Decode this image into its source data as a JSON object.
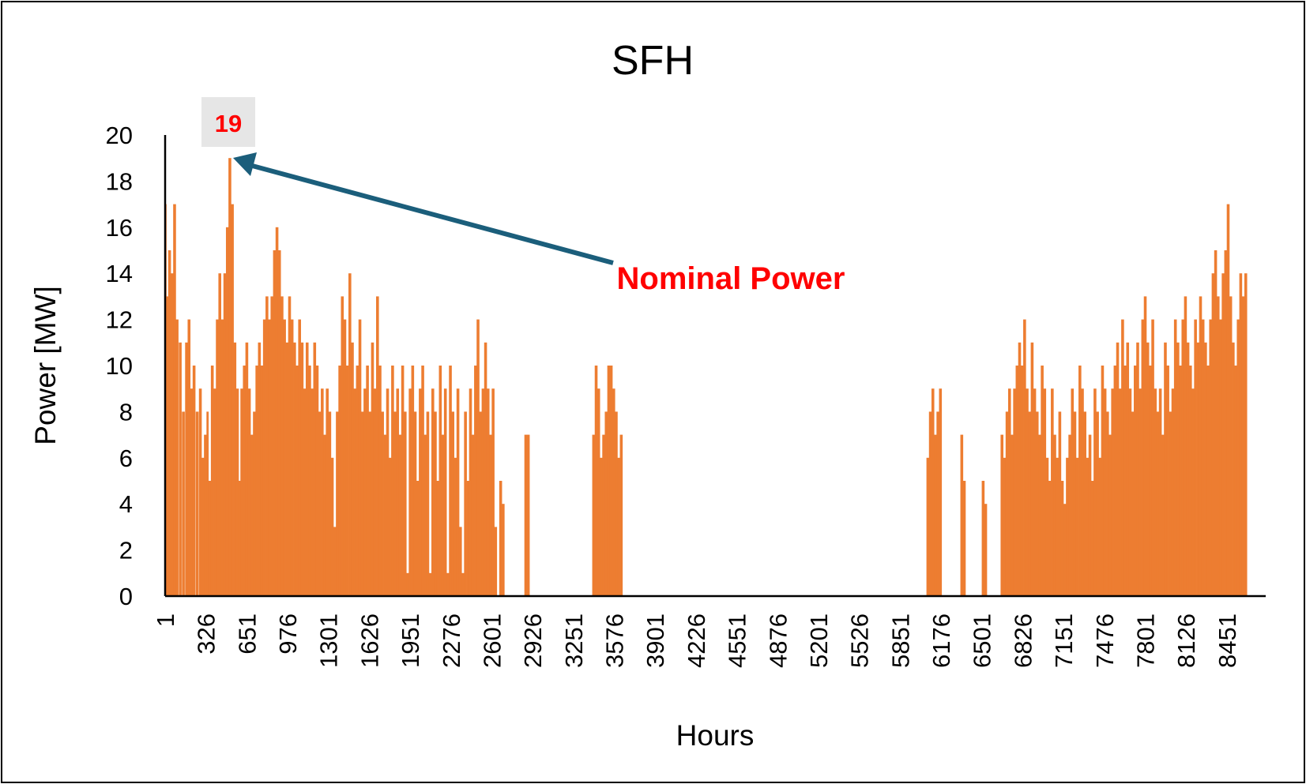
{
  "chart_data": {
    "type": "bar",
    "title": "SFH",
    "xlabel": "Hours",
    "ylabel": "Power [MW]",
    "ylim": [
      0,
      20
    ],
    "y_ticks": [
      "0",
      "2",
      "4",
      "6",
      "8",
      "10",
      "12",
      "14",
      "16",
      "18",
      "20"
    ],
    "x_ticks": [
      "1",
      "326",
      "651",
      "976",
      "1301",
      "1626",
      "1951",
      "2276",
      "2601",
      "2926",
      "3251",
      "3576",
      "3901",
      "4226",
      "4551",
      "4876",
      "5201",
      "5526",
      "5851",
      "6176",
      "6501",
      "6826",
      "7151",
      "7476",
      "7801",
      "8126",
      "8451"
    ],
    "x_range": [
      1,
      8760
    ],
    "bar_color": "#ED7D31",
    "grid": false,
    "series": [
      {
        "values": [
          [
            1,
            17
          ],
          [
            10,
            13
          ],
          [
            25,
            15
          ],
          [
            45,
            14
          ],
          [
            65,
            17
          ],
          [
            85,
            12
          ],
          [
            110,
            11
          ],
          [
            135,
            8
          ],
          [
            160,
            11
          ],
          [
            180,
            12
          ],
          [
            200,
            9
          ],
          [
            220,
            10
          ],
          [
            245,
            8
          ],
          [
            270,
            9
          ],
          [
            290,
            6
          ],
          [
            310,
            7
          ],
          [
            330,
            8
          ],
          [
            345,
            5
          ],
          [
            365,
            10
          ],
          [
            385,
            9
          ],
          [
            405,
            12
          ],
          [
            425,
            14
          ],
          [
            445,
            12
          ],
          [
            465,
            14
          ],
          [
            485,
            16
          ],
          [
            505,
            19
          ],
          [
            525,
            17
          ],
          [
            545,
            11
          ],
          [
            565,
            9
          ],
          [
            585,
            5
          ],
          [
            600,
            9
          ],
          [
            620,
            10
          ],
          [
            640,
            11
          ],
          [
            660,
            9
          ],
          [
            680,
            7
          ],
          [
            700,
            8
          ],
          [
            720,
            10
          ],
          [
            740,
            11
          ],
          [
            760,
            10
          ],
          [
            780,
            12
          ],
          [
            800,
            13
          ],
          [
            820,
            12
          ],
          [
            840,
            13
          ],
          [
            860,
            15
          ],
          [
            880,
            16
          ],
          [
            900,
            15
          ],
          [
            920,
            13
          ],
          [
            940,
            12
          ],
          [
            960,
            11
          ],
          [
            980,
            13
          ],
          [
            1000,
            12
          ],
          [
            1020,
            11
          ],
          [
            1040,
            10
          ],
          [
            1060,
            12
          ],
          [
            1080,
            11
          ],
          [
            1100,
            9
          ],
          [
            1120,
            11
          ],
          [
            1140,
            10
          ],
          [
            1160,
            9
          ],
          [
            1180,
            11
          ],
          [
            1200,
            10
          ],
          [
            1220,
            8
          ],
          [
            1240,
            9
          ],
          [
            1260,
            7
          ],
          [
            1280,
            9
          ],
          [
            1300,
            8
          ],
          [
            1320,
            6
          ],
          [
            1340,
            3
          ],
          [
            1360,
            8
          ],
          [
            1380,
            10
          ],
          [
            1400,
            13
          ],
          [
            1420,
            12
          ],
          [
            1440,
            10
          ],
          [
            1460,
            14
          ],
          [
            1480,
            11
          ],
          [
            1500,
            9
          ],
          [
            1520,
            10
          ],
          [
            1540,
            12
          ],
          [
            1560,
            8
          ],
          [
            1580,
            9
          ],
          [
            1600,
            10
          ],
          [
            1620,
            8
          ],
          [
            1640,
            11
          ],
          [
            1660,
            9
          ],
          [
            1680,
            13
          ],
          [
            1700,
            10
          ],
          [
            1720,
            8
          ],
          [
            1740,
            7
          ],
          [
            1760,
            9
          ],
          [
            1780,
            6
          ],
          [
            1800,
            10
          ],
          [
            1820,
            8
          ],
          [
            1840,
            9
          ],
          [
            1860,
            7
          ],
          [
            1880,
            10
          ],
          [
            1900,
            8
          ],
          [
            1920,
            1
          ],
          [
            1940,
            9
          ],
          [
            1960,
            10
          ],
          [
            1980,
            8
          ],
          [
            2000,
            5
          ],
          [
            2020,
            9
          ],
          [
            2040,
            10
          ],
          [
            2060,
            7
          ],
          [
            2080,
            8
          ],
          [
            2100,
            1
          ],
          [
            2120,
            9
          ],
          [
            2140,
            8
          ],
          [
            2160,
            5
          ],
          [
            2180,
            10
          ],
          [
            2200,
            7
          ],
          [
            2220,
            9
          ],
          [
            2240,
            1
          ],
          [
            2260,
            10
          ],
          [
            2280,
            8
          ],
          [
            2300,
            6
          ],
          [
            2320,
            9
          ],
          [
            2340,
            3
          ],
          [
            2360,
            1
          ],
          [
            2380,
            8
          ],
          [
            2400,
            5
          ],
          [
            2420,
            9
          ],
          [
            2440,
            7
          ],
          [
            2460,
            10
          ],
          [
            2480,
            12
          ],
          [
            2500,
            8
          ],
          [
            2520,
            9
          ],
          [
            2540,
            11
          ],
          [
            2560,
            9
          ],
          [
            2580,
            7
          ],
          [
            2600,
            9
          ],
          [
            2620,
            3
          ],
          [
            2660,
            5
          ],
          [
            2680,
            4
          ],
          [
            2860,
            7
          ],
          [
            2880,
            7
          ],
          [
            3400,
            7
          ],
          [
            3420,
            10
          ],
          [
            3440,
            9
          ],
          [
            3460,
            6
          ],
          [
            3480,
            7
          ],
          [
            3500,
            8
          ],
          [
            3520,
            10
          ],
          [
            3540,
            10
          ],
          [
            3560,
            9
          ],
          [
            3580,
            8
          ],
          [
            3600,
            6
          ],
          [
            3620,
            7
          ],
          [
            6060,
            6
          ],
          [
            6080,
            8
          ],
          [
            6100,
            9
          ],
          [
            6120,
            7
          ],
          [
            6140,
            8
          ],
          [
            6160,
            9
          ],
          [
            6330,
            7
          ],
          [
            6350,
            5
          ],
          [
            6500,
            5
          ],
          [
            6520,
            4
          ],
          [
            6650,
            7
          ],
          [
            6670,
            6
          ],
          [
            6690,
            8
          ],
          [
            6710,
            9
          ],
          [
            6730,
            7
          ],
          [
            6750,
            9
          ],
          [
            6770,
            10
          ],
          [
            6790,
            11
          ],
          [
            6810,
            10
          ],
          [
            6830,
            12
          ],
          [
            6850,
            9
          ],
          [
            6870,
            8
          ],
          [
            6890,
            11
          ],
          [
            6910,
            9
          ],
          [
            6930,
            8
          ],
          [
            6950,
            7
          ],
          [
            6970,
            10
          ],
          [
            6990,
            9
          ],
          [
            7010,
            6
          ],
          [
            7030,
            5
          ],
          [
            7050,
            9
          ],
          [
            7070,
            7
          ],
          [
            7090,
            6
          ],
          [
            7110,
            8
          ],
          [
            7130,
            5
          ],
          [
            7150,
            4
          ],
          [
            7170,
            6
          ],
          [
            7190,
            7
          ],
          [
            7210,
            9
          ],
          [
            7230,
            8
          ],
          [
            7250,
            6
          ],
          [
            7270,
            10
          ],
          [
            7290,
            9
          ],
          [
            7310,
            8
          ],
          [
            7330,
            6
          ],
          [
            7350,
            7
          ],
          [
            7370,
            5
          ],
          [
            7390,
            9
          ],
          [
            7410,
            8
          ],
          [
            7430,
            6
          ],
          [
            7450,
            10
          ],
          [
            7470,
            9
          ],
          [
            7490,
            8
          ],
          [
            7510,
            7
          ],
          [
            7530,
            9
          ],
          [
            7550,
            10
          ],
          [
            7570,
            11
          ],
          [
            7590,
            9
          ],
          [
            7610,
            12
          ],
          [
            7630,
            10
          ],
          [
            7650,
            11
          ],
          [
            7670,
            9
          ],
          [
            7690,
            8
          ],
          [
            7710,
            10
          ],
          [
            7730,
            11
          ],
          [
            7750,
            9
          ],
          [
            7770,
            12
          ],
          [
            7790,
            13
          ],
          [
            7810,
            11
          ],
          [
            7830,
            10
          ],
          [
            7850,
            12
          ],
          [
            7870,
            9
          ],
          [
            7890,
            8
          ],
          [
            7910,
            9
          ],
          [
            7930,
            7
          ],
          [
            7950,
            11
          ],
          [
            7970,
            10
          ],
          [
            7990,
            8
          ],
          [
            8010,
            9
          ],
          [
            8030,
            12
          ],
          [
            8050,
            11
          ],
          [
            8070,
            10
          ],
          [
            8090,
            12
          ],
          [
            8110,
            13
          ],
          [
            8130,
            11
          ],
          [
            8150,
            10
          ],
          [
            8170,
            9
          ],
          [
            8190,
            12
          ],
          [
            8210,
            11
          ],
          [
            8230,
            13
          ],
          [
            8250,
            12
          ],
          [
            8270,
            11
          ],
          [
            8290,
            10
          ],
          [
            8310,
            12
          ],
          [
            8330,
            14
          ],
          [
            8350,
            15
          ],
          [
            8370,
            13
          ],
          [
            8390,
            12
          ],
          [
            8410,
            14
          ],
          [
            8430,
            15
          ],
          [
            8450,
            17
          ],
          [
            8470,
            13
          ],
          [
            8490,
            11
          ],
          [
            8510,
            10
          ],
          [
            8530,
            12
          ],
          [
            8550,
            14
          ],
          [
            8570,
            13
          ],
          [
            8590,
            14
          ]
        ]
      }
    ],
    "annotations": {
      "peak_label": "19",
      "peak_value": 19,
      "peak_hour": 505,
      "arrow_text": "Nominal Power",
      "arrow_color": "#1B5E7B",
      "text_color": "#FF0000",
      "label_box_color": "#E6E6E6"
    }
  }
}
